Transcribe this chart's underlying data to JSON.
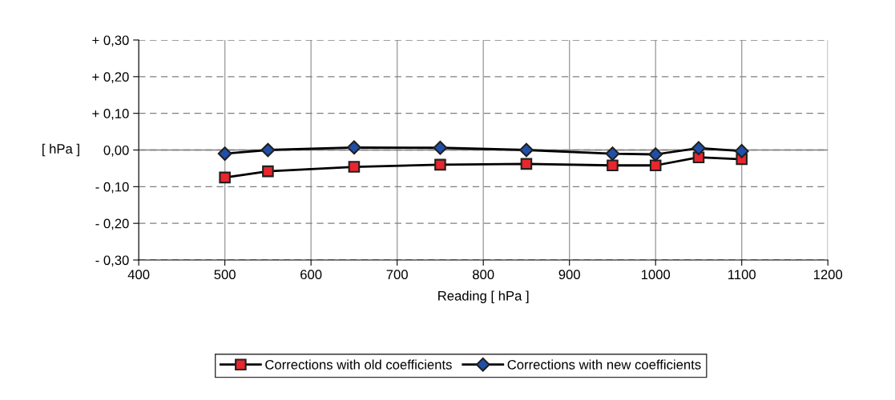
{
  "chart_data": {
    "type": "line",
    "xlabel": "Reading [ hPa ]",
    "ylabel": "[ hPa ]",
    "x": [
      500,
      550,
      650,
      750,
      850,
      950,
      1000,
      1050,
      1100
    ],
    "series": [
      {
        "name": "Corrections with old coefficients",
        "color": "#e8262d",
        "marker": "square",
        "values": [
          -0.075,
          -0.058,
          -0.046,
          -0.04,
          -0.038,
          -0.042,
          -0.042,
          -0.02,
          -0.025
        ]
      },
      {
        "name": "Corrections with new coefficients",
        "color": "#1f4fa8",
        "marker": "diamond",
        "values": [
          -0.01,
          0.0,
          0.007,
          0.006,
          0.0,
          -0.01,
          -0.012,
          0.005,
          -0.003
        ]
      }
    ],
    "xlim": [
      400,
      1200
    ],
    "xticks": [
      400,
      500,
      600,
      700,
      800,
      900,
      1000,
      1100,
      1200
    ],
    "ylim": [
      -0.3,
      0.3
    ],
    "yticks": [
      {
        "value": -0.3,
        "label": "- 0,30"
      },
      {
        "value": -0.2,
        "label": "- 0,20"
      },
      {
        "value": -0.1,
        "label": "- 0,10"
      },
      {
        "value": 0,
        "label": "0,00"
      },
      {
        "value": 0.1,
        "label": "+ 0,10"
      },
      {
        "value": 0.2,
        "label": "+ 0,20"
      },
      {
        "value": 0.3,
        "label": "+ 0,30"
      }
    ],
    "ref_lines": [
      {
        "axis": "y",
        "value": 0,
        "color": "#808080",
        "line_style": "solid"
      }
    ],
    "grid": true,
    "legend": "bottom",
    "line_style": "solid"
  }
}
